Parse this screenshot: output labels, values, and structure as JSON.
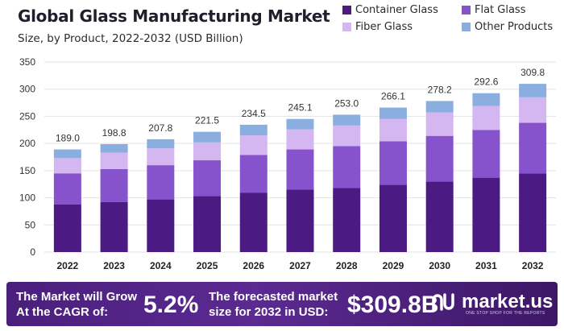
{
  "header": {
    "title": "Global Glass Manufacturing Market",
    "subtitle": "Size, by Product, 2022-2032 (USD Billion)"
  },
  "chart_data": {
    "type": "bar",
    "stacked": true,
    "title": "Global Glass Manufacturing Market",
    "subtitle": "Size, by Product, 2022-2032 (USD Billion)",
    "categories": [
      "2022",
      "2023",
      "2024",
      "2025",
      "2026",
      "2027",
      "2028",
      "2029",
      "2030",
      "2031",
      "2032"
    ],
    "series": [
      {
        "name": "Container Glass",
        "color": "#4b1a82",
        "values": [
          88,
          92,
          97,
          103,
          109,
          115,
          118,
          124,
          130,
          137,
          145
        ]
      },
      {
        "name": "Flat Glass",
        "color": "#8753cc",
        "values": [
          57,
          61,
          63,
          66,
          70,
          74,
          77,
          80,
          84,
          88,
          93
        ]
      },
      {
        "name": "Fiber Glass",
        "color": "#d4b6f0",
        "values": [
          28,
          30,
          31,
          33,
          36,
          37,
          38,
          41,
          43,
          44,
          47
        ]
      },
      {
        "name": "Other Products",
        "color": "#8aaee0",
        "values": [
          16.0,
          15.8,
          16.8,
          19.5,
          19.5,
          19.1,
          20.0,
          21.1,
          21.2,
          23.6,
          24.8
        ]
      }
    ],
    "totals": [
      189.0,
      198.8,
      207.8,
      221.5,
      234.5,
      245.1,
      253.0,
      266.1,
      278.2,
      292.6,
      309.8
    ],
    "total_labels": [
      "189.0",
      "198.8",
      "207.8",
      "221.5",
      "234.5",
      "245.1",
      "253.0",
      "266.1",
      "278.2",
      "292.6",
      "309.8"
    ],
    "ylim": [
      0,
      350
    ],
    "yticks": [
      0,
      50,
      100,
      150,
      200,
      250,
      300,
      350
    ],
    "xlabel": "",
    "ylabel": "",
    "grid": true,
    "legend_position": "top-right"
  },
  "footer": {
    "cagr_text_line1": "The Market will Grow",
    "cagr_text_line2": "At the CAGR of:",
    "cagr_value": "5.2%",
    "forecast_text_line1": "The forecasted market",
    "forecast_text_line2": "size for 2032 in USD:",
    "forecast_value": "$309.8B",
    "brand_name": "market.us",
    "brand_tagline": "ONE STOP SHOP FOR THE REPORTS"
  }
}
